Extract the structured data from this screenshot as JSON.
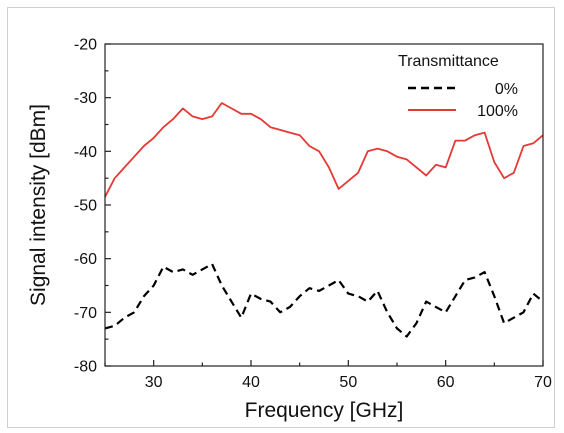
{
  "chart_data": {
    "type": "line",
    "title": "",
    "xlabel": "Frequency [GHz]",
    "ylabel": "Signal intensity [dBm]",
    "xlim": [
      25,
      70
    ],
    "ylim": [
      -80,
      -20
    ],
    "xticks": [
      30,
      40,
      50,
      60,
      70
    ],
    "yticks": [
      -80,
      -70,
      -60,
      -50,
      -40,
      -30,
      -20
    ],
    "grid": false,
    "legend": {
      "title": "Transmittance",
      "placement": "top-right"
    },
    "series": [
      {
        "name": "0%",
        "color": "#000000",
        "dash": "dashed",
        "x": [
          25,
          26,
          27,
          28,
          29,
          30,
          31,
          32,
          33,
          34,
          35,
          36,
          37,
          38,
          39,
          40,
          41,
          42,
          43,
          44,
          45,
          46,
          47,
          48,
          49,
          50,
          51,
          52,
          53,
          54,
          55,
          56,
          57,
          58,
          59,
          60,
          61,
          62,
          63,
          64,
          65,
          66,
          67,
          68,
          69,
          70
        ],
        "values": [
          -73,
          -72.5,
          -71,
          -70,
          -67,
          -65,
          -61.5,
          -62.5,
          -62,
          -63,
          -62,
          -61,
          -65,
          -68,
          -71,
          -66.5,
          -67.5,
          -68,
          -70,
          -69,
          -67,
          -65.5,
          -66,
          -65,
          -64,
          -66.5,
          -67,
          -68,
          -66,
          -70,
          -73,
          -74.5,
          -72,
          -68,
          -69,
          -70,
          -67,
          -64,
          -63.5,
          -62.5,
          -67,
          -72,
          -71,
          -70,
          -66.5,
          -68
        ]
      },
      {
        "name": "100%",
        "color": "#e53935",
        "dash": "solid",
        "x": [
          25,
          26,
          27,
          28,
          29,
          30,
          31,
          32,
          33,
          34,
          35,
          36,
          37,
          38,
          39,
          40,
          41,
          42,
          43,
          44,
          45,
          46,
          47,
          48,
          49,
          50,
          51,
          52,
          53,
          54,
          55,
          56,
          57,
          58,
          59,
          60,
          61,
          62,
          63,
          64,
          65,
          66,
          67,
          68,
          69,
          70
        ],
        "values": [
          -48.5,
          -45,
          -43,
          -41,
          -39,
          -37.5,
          -35.5,
          -34,
          -32,
          -33.5,
          -34,
          -33.5,
          -31,
          -32,
          -33,
          -33,
          -34,
          -35.5,
          -36,
          -36.5,
          -37,
          -39,
          -40,
          -43,
          -47,
          -45.5,
          -44,
          -40,
          -39.5,
          -40,
          -41,
          -41.5,
          -43,
          -44.5,
          -42.5,
          -43,
          -38,
          -38,
          -37,
          -36.5,
          -42,
          -45,
          -44,
          -39,
          -38.5,
          -37
        ]
      }
    ]
  }
}
